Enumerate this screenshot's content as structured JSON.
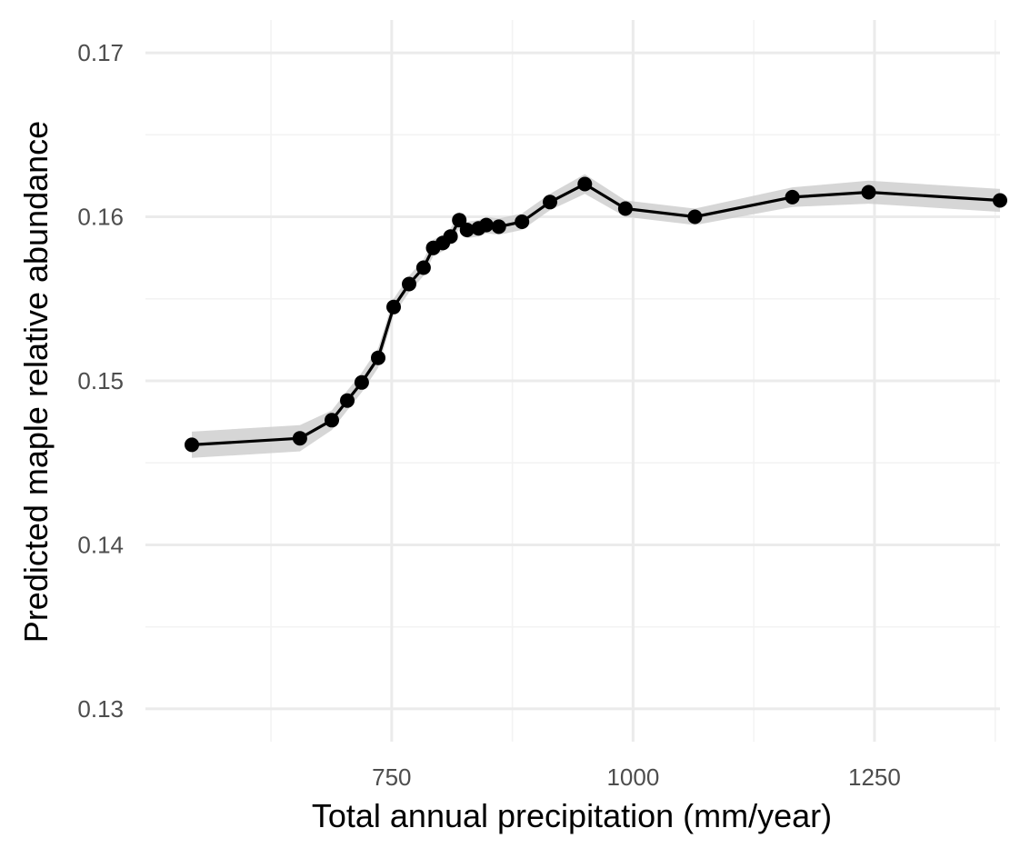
{
  "chart_data": {
    "type": "line",
    "title": "",
    "xlabel": "Total annual precipitation (mm/year)",
    "ylabel": "Predicted maple relative abundance",
    "xlim": [
      495,
      1380
    ],
    "ylim": [
      0.128,
      0.172
    ],
    "x_ticks": [
      750,
      1000,
      1250
    ],
    "x_tick_labels": [
      "750",
      "1000",
      "1250"
    ],
    "x_minor_ticks": [
      625,
      875,
      1125,
      1375
    ],
    "y_ticks": [
      0.13,
      0.14,
      0.15,
      0.16,
      0.17
    ],
    "y_tick_labels": [
      "0.13",
      "0.14",
      "0.15",
      "0.16",
      "0.17"
    ],
    "y_minor_ticks": [
      0.135,
      0.145,
      0.155,
      0.165
    ],
    "grid": true,
    "legend": "none",
    "colors": {
      "line": "#000000",
      "ribbon": "#cccccc",
      "grid_major": "#ebebeb",
      "grid_minor": "#f3f3f3",
      "tick_text": "#4d4d4d",
      "title_text": "#000000"
    },
    "series": [
      {
        "x": [
          543,
          655,
          688,
          704,
          719,
          736,
          752,
          768,
          783,
          793,
          803,
          811,
          820,
          828,
          840,
          848,
          861,
          885,
          914,
          950,
          992,
          1064,
          1165,
          1244,
          1380
        ],
        "y": [
          0.1461,
          0.1465,
          0.1476,
          0.1488,
          0.1499,
          0.1514,
          0.1545,
          0.1559,
          0.1569,
          0.1581,
          0.1584,
          0.1588,
          0.1598,
          0.1592,
          0.1593,
          0.1595,
          0.1594,
          0.1597,
          0.1609,
          0.162,
          0.1605,
          0.16,
          0.1612,
          0.1615,
          0.161
        ],
        "ci_half_width": [
          0.0008,
          0.0008,
          0.0006,
          0.0006,
          0.0006,
          0.0006,
          0.0005,
          0.0005,
          0.0005,
          0.0005,
          0.0005,
          0.0005,
          0.0005,
          0.0005,
          0.0005,
          0.0005,
          0.0005,
          0.0005,
          0.0005,
          0.0006,
          0.0005,
          0.0005,
          0.0006,
          0.0007,
          0.0007
        ]
      }
    ]
  }
}
